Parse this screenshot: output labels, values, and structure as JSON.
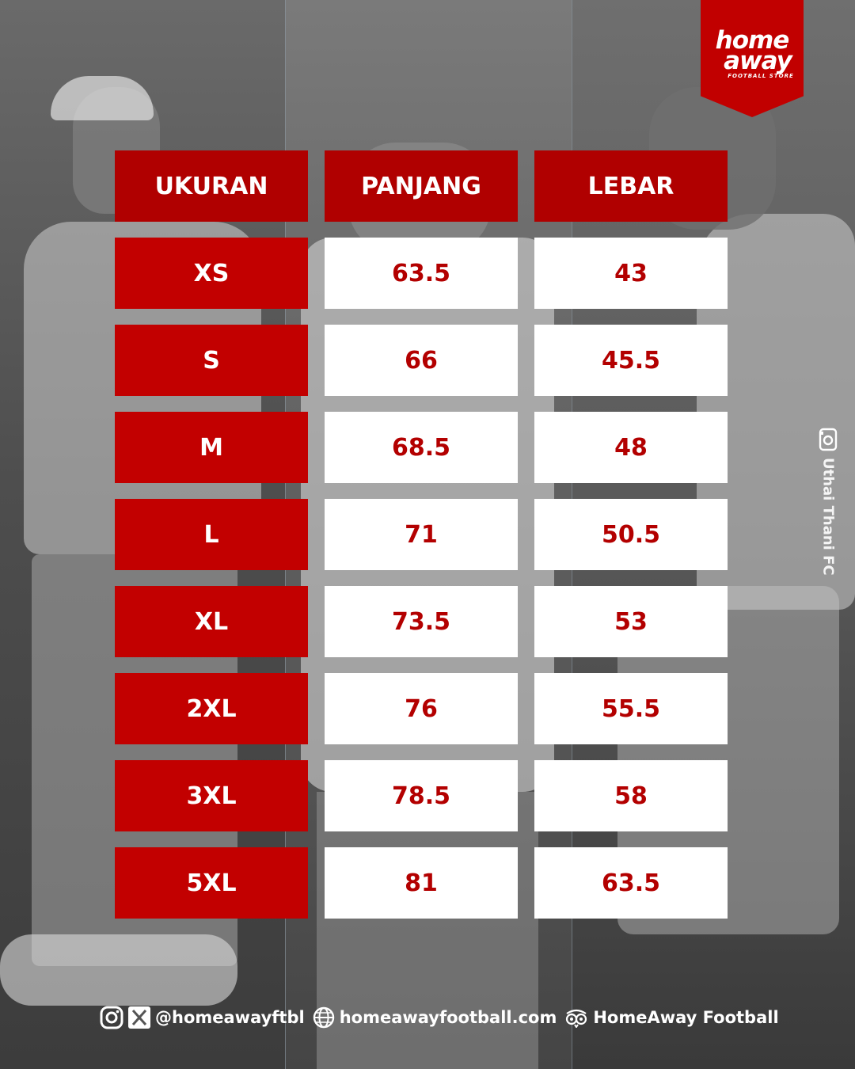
{
  "logo": {
    "line1": "home",
    "line2": "away",
    "subtitle": "FOOTBALL STORE",
    "color": "#c10000"
  },
  "table": {
    "headers": [
      "UKURAN",
      "PANJANG",
      "LEBAR"
    ],
    "rows": [
      {
        "size": "XS",
        "panjang": "63.5",
        "lebar": "43"
      },
      {
        "size": "S",
        "panjang": "66",
        "lebar": "45.5"
      },
      {
        "size": "M",
        "panjang": "68.5",
        "lebar": "48"
      },
      {
        "size": "L",
        "panjang": "71",
        "lebar": "50.5"
      },
      {
        "size": "XL",
        "panjang": "73.5",
        "lebar": "53"
      },
      {
        "size": "2XL",
        "panjang": "76",
        "lebar": "55.5"
      },
      {
        "size": "3XL",
        "panjang": "78.5",
        "lebar": "58"
      },
      {
        "size": "5XL",
        "panjang": "81",
        "lebar": "63.5"
      }
    ],
    "colors": {
      "header_bg": "#b00000",
      "size_bg": "#c20000",
      "value_bg": "#ffffff",
      "value_text": "#b30000"
    }
  },
  "credit": {
    "icon": "camera-icon",
    "text": "Uthai Thani FC"
  },
  "footer": {
    "icons": [
      "instagram-icon",
      "x-icon",
      "globe-icon",
      "tripadvisor-icon"
    ],
    "social_handle": "@homeawayftbl",
    "website": "homeawayfootball.com",
    "brand_name": "HomeAway Football"
  }
}
